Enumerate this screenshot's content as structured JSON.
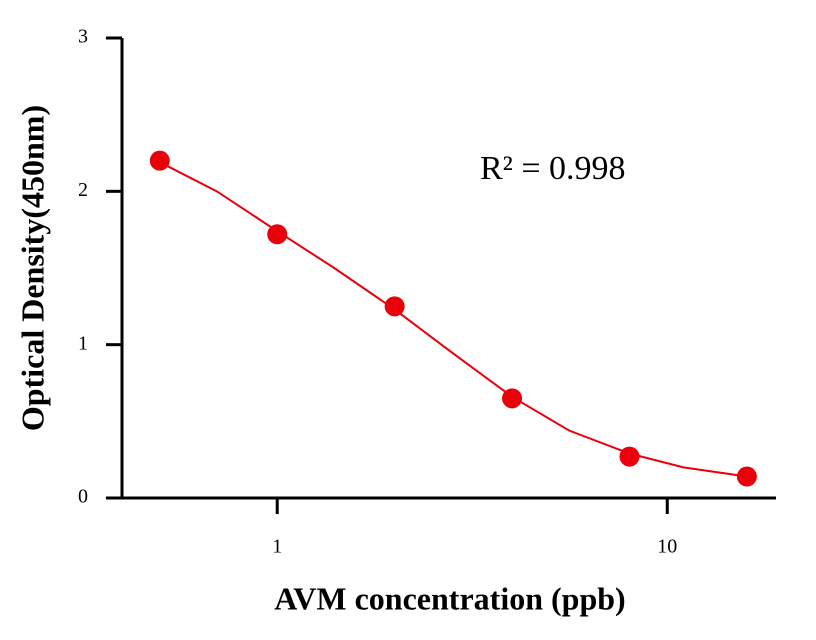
{
  "chart_data": {
    "type": "scatter",
    "xlabel": "AVM concentration (ppb)",
    "ylabel": "Optical Density(450nm)",
    "annotation": "R² = 0.998",
    "xscale": "log",
    "xlim": [
      0.4,
      19
    ],
    "ylim": [
      0,
      3
    ],
    "xticks": [
      1,
      10
    ],
    "yticks": [
      0,
      1,
      2,
      3
    ],
    "series": [
      {
        "kind": "points",
        "color": "#e8000b",
        "x": [
          0.5,
          1,
          2,
          4,
          8,
          16
        ],
        "values": [
          2.2,
          1.72,
          1.25,
          0.65,
          0.27,
          0.14
        ]
      },
      {
        "kind": "line",
        "color": "#e8000b",
        "x": [
          0.5,
          0.7,
          1,
          1.4,
          2,
          2.8,
          4,
          5.6,
          8,
          11,
          16
        ],
        "values": [
          2.19,
          2.0,
          1.74,
          1.5,
          1.23,
          0.95,
          0.66,
          0.44,
          0.29,
          0.2,
          0.14
        ]
      }
    ]
  }
}
